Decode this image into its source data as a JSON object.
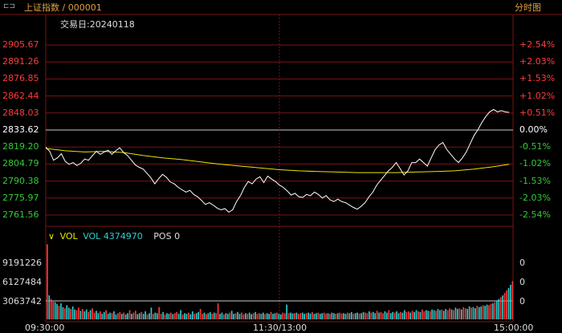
{
  "header": {
    "title": "上证指数 / 000001",
    "view_label": "分时图"
  },
  "colors": {
    "up": "#ff3b3b",
    "down": "#33cc33",
    "flat": "#ffffff",
    "grid_red": "#7a1414",
    "price_line": "#ffffff",
    "avg_line": "#e6e600",
    "vol_label": "#e6e600",
    "vol_value": "#33cccc",
    "bar_up": "#ff3b3b",
    "bar_cyan": "#33cccc"
  },
  "info": {
    "date_label": "交易日:20240118"
  },
  "vol_legend": {
    "vol": "VOL",
    "vol_value": "VOL 4374970",
    "pos": "POS 0"
  },
  "price_axis": [
    {
      "left": "2905.67",
      "right": "+2.54%",
      "side": "up"
    },
    {
      "left": "2891.26",
      "right": "+2.03%",
      "side": "up"
    },
    {
      "left": "2876.85",
      "right": "+1.53%",
      "side": "up"
    },
    {
      "left": "2862.44",
      "right": "+1.02%",
      "side": "up"
    },
    {
      "left": "2848.03",
      "right": "+0.51%",
      "side": "up"
    },
    {
      "left": "2833.62",
      "right": "0.00%",
      "side": "flat"
    },
    {
      "left": "2819.20",
      "right": "-0.51%",
      "side": "down"
    },
    {
      "left": "2804.79",
      "right": "-1.02%",
      "side": "down"
    },
    {
      "left": "2790.38",
      "right": "-1.53%",
      "side": "down"
    },
    {
      "left": "2775.97",
      "right": "-2.03%",
      "side": "down"
    },
    {
      "left": "2761.56",
      "right": "-2.54%",
      "side": "down"
    }
  ],
  "volume_axis": [
    {
      "left": "9191226",
      "right": "0"
    },
    {
      "left": "6127484",
      "right": "0"
    },
    {
      "left": "3063742",
      "right": "0"
    }
  ],
  "time_axis": [
    "09:30:00",
    "11:30/13:00",
    "15:00:00"
  ],
  "chart_data": {
    "type": "line",
    "y_range": [
      2761.56,
      2905.67
    ],
    "prev_close": 2833.62,
    "volume_range": [
      0,
      12255000
    ],
    "x_range_minutes": [
      0,
      240
    ],
    "series": [
      {
        "points": [
          [
            0,
            2819.0
          ],
          [
            2,
            2815.5
          ],
          [
            4,
            2808
          ],
          [
            6,
            2810
          ],
          [
            8,
            2813.5
          ],
          [
            10,
            2807
          ],
          [
            12,
            2804.5
          ],
          [
            14,
            2806
          ],
          [
            16,
            2803.5
          ],
          [
            18,
            2805.5
          ],
          [
            20,
            2809
          ],
          [
            22,
            2808
          ],
          [
            24,
            2812
          ],
          [
            26,
            2815.5
          ],
          [
            28,
            2813
          ],
          [
            30,
            2815
          ],
          [
            32,
            2816.5
          ],
          [
            34,
            2813
          ],
          [
            36,
            2816
          ],
          [
            38,
            2818.5
          ],
          [
            40,
            2814.5
          ],
          [
            42,
            2812
          ],
          [
            44,
            2808
          ],
          [
            46,
            2804
          ],
          [
            48,
            2802
          ],
          [
            50,
            2800.5
          ],
          [
            52,
            2797
          ],
          [
            54,
            2793
          ],
          [
            56,
            2788
          ],
          [
            58,
            2792.5
          ],
          [
            60,
            2796
          ],
          [
            62,
            2793.5
          ],
          [
            64,
            2789.5
          ],
          [
            66,
            2788
          ],
          [
            68,
            2785
          ],
          [
            70,
            2783
          ],
          [
            72,
            2781
          ],
          [
            74,
            2782.5
          ],
          [
            76,
            2779
          ],
          [
            78,
            2777
          ],
          [
            80,
            2774
          ],
          [
            82,
            2770.5
          ],
          [
            84,
            2772
          ],
          [
            86,
            2770
          ],
          [
            88,
            2767.5
          ],
          [
            90,
            2766
          ],
          [
            92,
            2767
          ],
          [
            94,
            2764
          ],
          [
            96,
            2766
          ],
          [
            98,
            2773
          ],
          [
            100,
            2778
          ],
          [
            102,
            2785
          ],
          [
            104,
            2790
          ],
          [
            106,
            2788
          ],
          [
            108,
            2792
          ],
          [
            110,
            2794
          ],
          [
            112,
            2789
          ],
          [
            114,
            2794.5
          ],
          [
            116,
            2792
          ],
          [
            118,
            2790
          ],
          [
            120,
            2787
          ],
          [
            122,
            2785
          ],
          [
            124,
            2782
          ],
          [
            126,
            2778.5
          ],
          [
            128,
            2780
          ],
          [
            130,
            2777
          ],
          [
            132,
            2776.5
          ],
          [
            134,
            2779
          ],
          [
            136,
            2778
          ],
          [
            138,
            2781
          ],
          [
            140,
            2779
          ],
          [
            142,
            2776
          ],
          [
            144,
            2778
          ],
          [
            146,
            2774.5
          ],
          [
            148,
            2773
          ],
          [
            150,
            2775
          ],
          [
            152,
            2773
          ],
          [
            154,
            2772
          ],
          [
            156,
            2770
          ],
          [
            158,
            2768
          ],
          [
            160,
            2766.5
          ],
          [
            162,
            2769
          ],
          [
            164,
            2772
          ],
          [
            166,
            2777
          ],
          [
            168,
            2781
          ],
          [
            170,
            2787
          ],
          [
            172,
            2791
          ],
          [
            174,
            2795
          ],
          [
            176,
            2799
          ],
          [
            178,
            2802
          ],
          [
            180,
            2806
          ],
          [
            182,
            2801
          ],
          [
            184,
            2795.5
          ],
          [
            186,
            2799
          ],
          [
            188,
            2806
          ],
          [
            190,
            2806
          ],
          [
            192,
            2809
          ],
          [
            194,
            2806
          ],
          [
            196,
            2803
          ],
          [
            198,
            2810
          ],
          [
            200,
            2817
          ],
          [
            202,
            2821
          ],
          [
            204,
            2823
          ],
          [
            206,
            2817
          ],
          [
            208,
            2813
          ],
          [
            210,
            2809
          ],
          [
            212,
            2806
          ],
          [
            214,
            2810
          ],
          [
            216,
            2815
          ],
          [
            218,
            2822
          ],
          [
            220,
            2829
          ],
          [
            222,
            2834
          ],
          [
            224,
            2840
          ],
          [
            226,
            2845
          ],
          [
            228,
            2849
          ],
          [
            230,
            2851
          ],
          [
            232,
            2849
          ],
          [
            234,
            2850
          ],
          [
            236,
            2849
          ],
          [
            238,
            2848.5
          ]
        ]
      },
      {
        "points": [
          [
            0,
            2818
          ],
          [
            10,
            2816
          ],
          [
            20,
            2815
          ],
          [
            30,
            2815.5
          ],
          [
            40,
            2814.5
          ],
          [
            50,
            2812
          ],
          [
            60,
            2810
          ],
          [
            70,
            2808.5
          ],
          [
            80,
            2806.5
          ],
          [
            90,
            2804.5
          ],
          [
            100,
            2803
          ],
          [
            110,
            2801.5
          ],
          [
            120,
            2800
          ],
          [
            130,
            2799
          ],
          [
            140,
            2798.5
          ],
          [
            150,
            2798
          ],
          [
            160,
            2797.5
          ],
          [
            170,
            2797.5
          ],
          [
            180,
            2797.5
          ],
          [
            190,
            2798
          ],
          [
            200,
            2798.5
          ],
          [
            210,
            2799
          ],
          [
            220,
            2800.5
          ],
          [
            230,
            2802.5
          ],
          [
            238,
            2804.5
          ]
        ]
      }
    ],
    "volume": [
      12200000,
      3900000,
      3300000,
      3100000,
      2800000,
      2500000,
      2200000,
      2600000,
      2000000,
      1800000,
      2300000,
      1900000,
      1700000,
      2100000,
      1600000,
      1500000,
      1900000,
      1400000,
      1700000,
      1300000,
      1600000,
      1200000,
      1500000,
      1800000,
      1100000,
      1400000,
      1000000,
      1300000,
      900000,
      1200000,
      1500000,
      900000,
      1100000,
      1000000,
      1300000,
      800000,
      1000000,
      1200000,
      900000,
      1100000,
      800000,
      1000000,
      1500000,
      900000,
      1100000,
      1400000,
      850000,
      1000000,
      1200000,
      900000,
      1300000,
      800000,
      1000000,
      1900000,
      900000,
      1100000,
      1000000,
      2000000,
      900000,
      1200000,
      800000,
      1000000,
      900000,
      1100000,
      850000,
      1000000,
      1200000,
      900000,
      1500000,
      800000,
      1000000,
      900000,
      1100000,
      850000,
      1300000,
      900000,
      1000000,
      1200000,
      1700000,
      900000,
      1100000,
      850000,
      1000000,
      1200000,
      900000,
      1100000,
      1000000,
      2600000,
      900000,
      1100000,
      800000,
      1000000,
      900000,
      1100000,
      1400000,
      900000,
      1000000,
      1200000,
      900000,
      1100000,
      800000,
      1000000,
      900000,
      1100000,
      850000,
      1000000,
      1200000,
      900000,
      1000000,
      900000,
      1100000,
      850000,
      1000000,
      900000,
      1200000,
      900000,
      1000000,
      1100000,
      900000,
      800000,
      1100000,
      1000000,
      2400000,
      1000000,
      1100000,
      950000,
      1000000,
      1100000,
      900000,
      1000000,
      1100000,
      900000,
      1000000,
      1100000,
      950000,
      1200000,
      900000,
      1000000,
      1100000,
      900000,
      1000000,
      1100000,
      950000,
      1000000,
      900000,
      1100000,
      1000000,
      900000,
      1000000,
      1100000,
      950000,
      1000000,
      900000,
      1100000,
      1000000,
      1200000,
      900000,
      1000000,
      1100000,
      950000,
      1000000,
      1200000,
      1100000,
      1000000,
      1300000,
      1100000,
      1200000,
      1000000,
      1400000,
      1100000,
      1200000,
      1000000,
      1300000,
      1100000,
      1500000,
      1000000,
      1200000,
      1100000,
      1300000,
      1000000,
      1200000,
      1100000,
      1500000,
      1200000,
      1300000,
      1100000,
      1400000,
      1200000,
      1500000,
      1300000,
      1200000,
      1600000,
      1300000,
      1500000,
      1400000,
      1300000,
      1600000,
      1500000,
      1400000,
      1700000,
      1500000,
      1600000,
      1400000,
      1700000,
      1500000,
      1800000,
      1600000,
      1500000,
      1900000,
      1700000,
      1800000,
      1600000,
      2000000,
      1800000,
      1700000,
      2100000,
      1900000,
      2000000,
      1800000,
      2200000,
      2000000,
      2100000,
      2300000,
      2200000,
      2400000,
      2300000,
      2500000,
      2600000,
      2800000,
      3100000,
      3300000,
      3600000,
      3900000,
      4300000,
      4700000,
      5100000,
      5600000,
      6200000
    ]
  }
}
